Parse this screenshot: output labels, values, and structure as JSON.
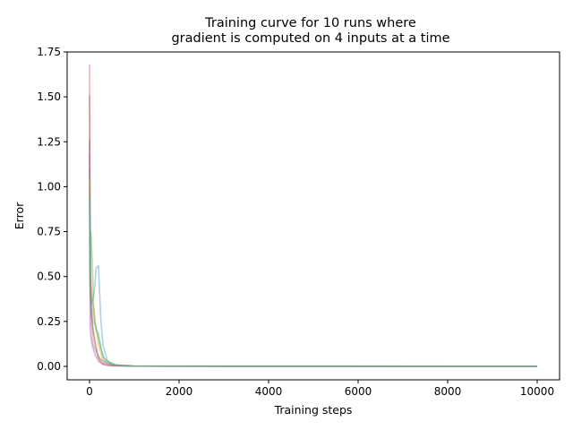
{
  "chart_data": {
    "type": "line",
    "title_lines": [
      "Training curve for 10 runs where",
      "gradient is computed on 4 inputs at a time"
    ],
    "xlabel": "Training steps",
    "ylabel": "Error",
    "xlim": [
      -500,
      10500
    ],
    "ylim": [
      -0.075,
      1.75
    ],
    "xticks": [
      0,
      2000,
      4000,
      6000,
      8000,
      10000
    ],
    "xtick_labels": [
      "0",
      "2000",
      "4000",
      "6000",
      "8000",
      "10000"
    ],
    "yticks": [
      0.0,
      0.25,
      0.5,
      0.75,
      1.0,
      1.25,
      1.5,
      1.75
    ],
    "ytick_labels": [
      "0.00",
      "0.25",
      "0.50",
      "0.75",
      "1.00",
      "1.25",
      "1.50",
      "1.75"
    ],
    "grid": false,
    "legend": "none",
    "series": [
      {
        "color": "#1f77b4",
        "x": [
          0,
          20,
          50,
          100,
          150,
          200,
          250,
          300,
          400,
          600,
          1000,
          10000
        ],
        "y": [
          1.18,
          0.48,
          0.35,
          0.4,
          0.55,
          0.56,
          0.27,
          0.12,
          0.03,
          0.005,
          0.001,
          0.0005
        ]
      },
      {
        "color": "#ff7f0e",
        "x": [
          0,
          20,
          50,
          100,
          150,
          200,
          300,
          500,
          1000,
          10000
        ],
        "y": [
          1.27,
          0.62,
          0.4,
          0.3,
          0.2,
          0.12,
          0.03,
          0.008,
          0.002,
          0.0005
        ]
      },
      {
        "color": "#2ca02c",
        "x": [
          0,
          10,
          30,
          60,
          90,
          120,
          150,
          200,
          300,
          500,
          1000,
          10000
        ],
        "y": [
          1.0,
          0.45,
          0.75,
          0.6,
          0.35,
          0.25,
          0.2,
          0.18,
          0.05,
          0.01,
          0.002,
          0.0005
        ]
      },
      {
        "color": "#d62728",
        "x": [
          0,
          15,
          40,
          80,
          120,
          180,
          250,
          400,
          1000,
          10000
        ],
        "y": [
          1.68,
          0.55,
          0.3,
          0.2,
          0.15,
          0.06,
          0.02,
          0.005,
          0.001,
          0.0005
        ]
      },
      {
        "color": "#9467bd",
        "x": [
          0,
          15,
          40,
          80,
          130,
          200,
          300,
          500,
          1000,
          10000
        ],
        "y": [
          1.25,
          0.2,
          0.14,
          0.1,
          0.06,
          0.03,
          0.01,
          0.003,
          0.001,
          0.0005
        ]
      },
      {
        "color": "#8c564b",
        "x": [
          0,
          15,
          40,
          80,
          120,
          200,
          300,
          500,
          1000,
          10000
        ],
        "y": [
          1.51,
          0.45,
          0.3,
          0.2,
          0.12,
          0.05,
          0.02,
          0.005,
          0.001,
          0.0005
        ]
      },
      {
        "color": "#e377c2",
        "x": [
          0,
          15,
          40,
          80,
          120,
          200,
          300,
          500,
          1000,
          10000
        ],
        "y": [
          1.2,
          0.25,
          0.15,
          0.1,
          0.07,
          0.03,
          0.01,
          0.003,
          0.001,
          0.0005
        ]
      },
      {
        "color": "#7f7f7f",
        "x": [
          0,
          15,
          40,
          80,
          150,
          250,
          400,
          700,
          1000,
          10000
        ],
        "y": [
          1.1,
          0.4,
          0.25,
          0.12,
          0.08,
          0.04,
          0.015,
          0.004,
          0.001,
          0.0005
        ]
      },
      {
        "color": "#bcbd22",
        "x": [
          0,
          15,
          40,
          80,
          150,
          250,
          350,
          600,
          1000,
          10000
        ],
        "y": [
          1.05,
          0.5,
          0.4,
          0.3,
          0.2,
          0.1,
          0.03,
          0.006,
          0.001,
          0.0005
        ]
      },
      {
        "color": "#17becf",
        "x": [
          0,
          15,
          40,
          80,
          150,
          250,
          350,
          600,
          1000,
          10000
        ],
        "y": [
          0.95,
          0.45,
          0.35,
          0.25,
          0.22,
          0.1,
          0.03,
          0.006,
          0.001,
          0.0005
        ]
      }
    ]
  }
}
